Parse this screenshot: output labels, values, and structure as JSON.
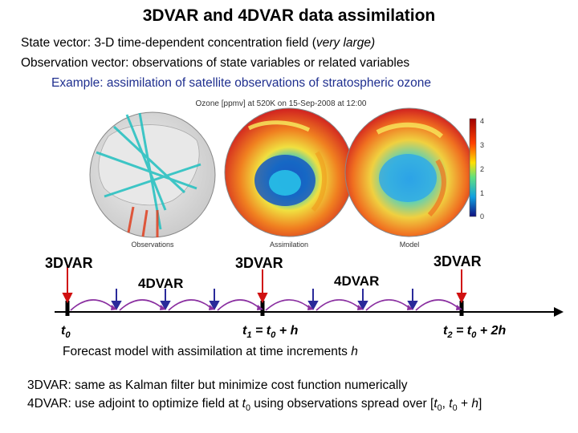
{
  "title": "3DVAR and 4DVAR data assimilation",
  "lines": {
    "state_prefix": "State vector: 3-D time-dependent concentration field (",
    "state_italic": "very large)",
    "observation": "Observation vector: observations of state variables or related variables",
    "example": "Example: assimilation of satellite observations of stratospheric ozone"
  },
  "figure": {
    "title": "Ozone [ppmv] at 520K on 15-Sep-2008 at 12:00",
    "captions": [
      "Observations",
      "Assimilation",
      "Model"
    ],
    "colorbar_ticks": [
      "4",
      "3",
      "2",
      "1",
      "0"
    ]
  },
  "timeline": {
    "labels_3dvar": [
      "3DVAR",
      "3DVAR",
      "3DVAR"
    ],
    "labels_4dvar": [
      "4DVAR",
      "4DVAR"
    ],
    "t0": {
      "main": "t",
      "sub": "0"
    },
    "t1": {
      "main": "t",
      "sub": "1",
      "eq": " = ",
      "rhs_main": "t",
      "rhs_sub": "0",
      "rhs_tail": " + h"
    },
    "t2": {
      "main": "t",
      "sub": "2",
      "eq": " = ",
      "rhs_main": "t",
      "rhs_sub": "0",
      "rhs_tail": " + 2h"
    },
    "forecast_prefix": "Forecast model with assimilation at time increments ",
    "forecast_h": "h"
  },
  "bottom": {
    "line1": "3DVAR: same as Kalman filter but minimize cost function numerically",
    "line2_prefix": "4DVAR: use adjoint to optimize field at ",
    "line2_t": "t",
    "line2_sub": "0",
    "line2_mid": " using observations spread over [",
    "line2_t0": "t",
    "line2_t0sub": "0",
    "line2_sep": ", ",
    "line2_t1": "t",
    "line2_t1sub": "0",
    "line2_tail": " + ",
    "line2_h": "h",
    "line2_end": "]"
  },
  "colors": {
    "accent_blue": "#1f2f8f",
    "arrow_red": "#d01010",
    "arrow_blue": "#2a2a9a",
    "arc_purple": "#8a2fa0"
  }
}
